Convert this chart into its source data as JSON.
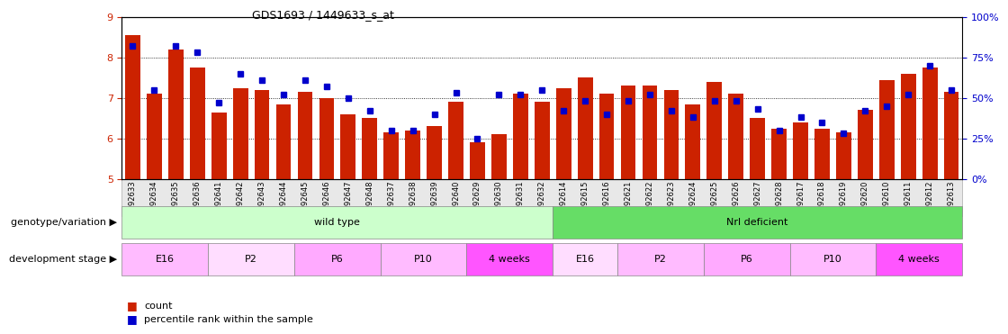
{
  "title": "GDS1693 / 1449633_s_at",
  "samples": [
    "GSM92633",
    "GSM92634",
    "GSM92635",
    "GSM92636",
    "GSM92641",
    "GSM92642",
    "GSM92643",
    "GSM92644",
    "GSM92645",
    "GSM92646",
    "GSM92647",
    "GSM92648",
    "GSM92637",
    "GSM92638",
    "GSM92639",
    "GSM92640",
    "GSM92629",
    "GSM92630",
    "GSM92631",
    "GSM92632",
    "GSM92614",
    "GSM92615",
    "GSM92616",
    "GSM92621",
    "GSM92622",
    "GSM92623",
    "GSM92624",
    "GSM92625",
    "GSM92626",
    "GSM92627",
    "GSM92628",
    "GSM92617",
    "GSM92618",
    "GSM92619",
    "GSM92620",
    "GSM92610",
    "GSM92611",
    "GSM92612",
    "GSM92613"
  ],
  "bar_values": [
    8.55,
    7.1,
    8.2,
    7.75,
    6.65,
    7.25,
    7.2,
    6.85,
    7.15,
    7.0,
    6.6,
    6.5,
    6.15,
    6.2,
    6.3,
    6.9,
    5.9,
    6.1,
    7.1,
    6.9,
    7.25,
    7.5,
    7.1,
    7.3,
    7.3,
    7.2,
    6.85,
    7.4,
    7.1,
    6.5,
    6.25,
    6.4,
    6.25,
    6.15,
    6.7,
    7.45,
    7.6,
    7.75,
    7.15
  ],
  "percentile_values_pct": [
    82,
    55,
    82,
    78,
    47,
    65,
    61,
    52,
    61,
    57,
    50,
    42,
    30,
    30,
    40,
    53,
    25,
    52,
    52,
    55,
    42,
    48,
    40,
    48,
    52,
    42,
    38,
    48,
    48,
    43,
    30,
    38,
    35,
    28,
    42,
    45,
    52,
    70,
    55
  ],
  "genotype_groups": [
    {
      "label": "wild type",
      "start": 0,
      "end": 20,
      "color": "#ccffcc"
    },
    {
      "label": "Nrl deficient",
      "start": 20,
      "end": 39,
      "color": "#66dd66"
    }
  ],
  "stage_groups": [
    {
      "label": "E16",
      "start": 0,
      "end": 4,
      "color": "#ffbbff"
    },
    {
      "label": "P2",
      "start": 4,
      "end": 8,
      "color": "#ffddff"
    },
    {
      "label": "P6",
      "start": 8,
      "end": 12,
      "color": "#ffaaff"
    },
    {
      "label": "P10",
      "start": 12,
      "end": 16,
      "color": "#ffbbff"
    },
    {
      "label": "4 weeks",
      "start": 16,
      "end": 20,
      "color": "#ff55ff"
    },
    {
      "label": "E16",
      "start": 20,
      "end": 23,
      "color": "#ffddff"
    },
    {
      "label": "P2",
      "start": 23,
      "end": 27,
      "color": "#ffbbff"
    },
    {
      "label": "P6",
      "start": 27,
      "end": 31,
      "color": "#ffaaff"
    },
    {
      "label": "P10",
      "start": 31,
      "end": 35,
      "color": "#ffbbff"
    },
    {
      "label": "4 weeks",
      "start": 35,
      "end": 39,
      "color": "#ff55ff"
    }
  ],
  "bar_color": "#cc2200",
  "percentile_color": "#0000cc",
  "ylim_left": [
    5,
    9
  ],
  "ylim_right": [
    0,
    100
  ],
  "yticks_left": [
    5,
    6,
    7,
    8,
    9
  ],
  "yticks_right": [
    0,
    25,
    50,
    75,
    100
  ],
  "ylabel_left_color": "#cc2200",
  "ylabel_right_color": "#0000cc",
  "label_row1": "genotype/variation",
  "label_row2": "development stage",
  "legend_count": "count",
  "legend_percentile": "percentile rank within the sample"
}
